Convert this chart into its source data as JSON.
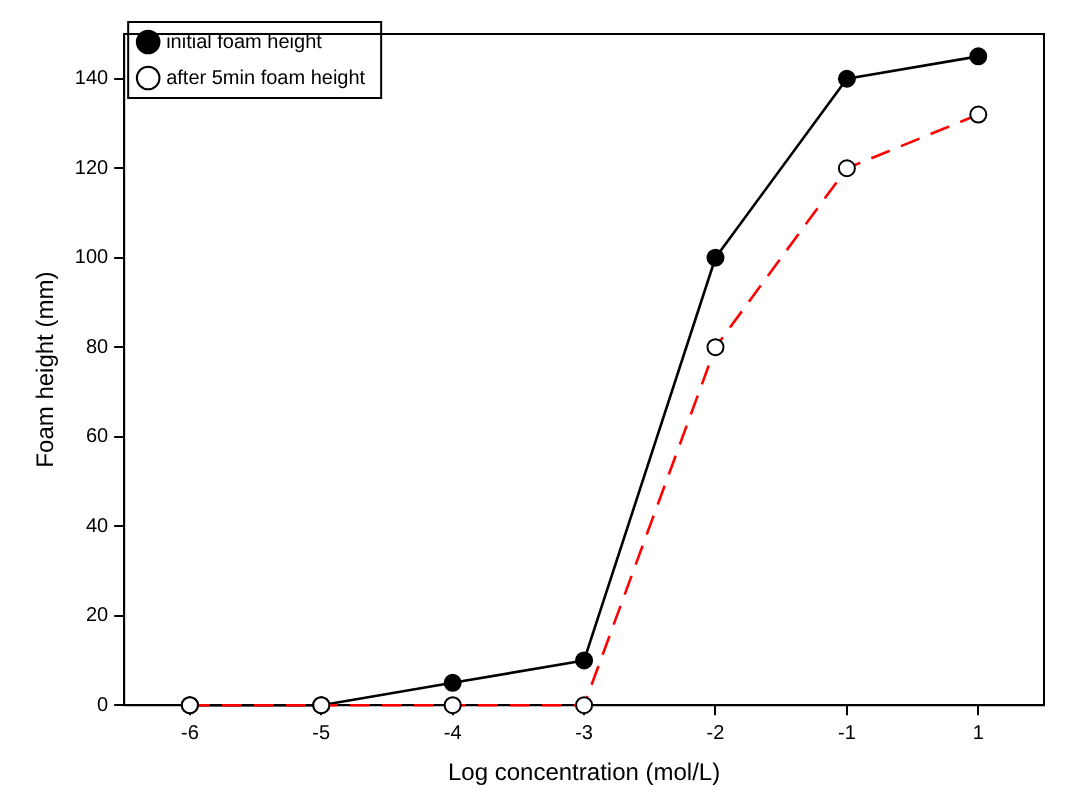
{
  "chart_data": {
    "type": "line",
    "xlabel": "Log concentration (mol/L)",
    "ylabel": "Foam height (mm)",
    "categories": [
      "-6",
      "-5",
      "-4",
      "-3",
      "-2",
      "-1",
      "1"
    ],
    "series": [
      {
        "name": "initial foam height",
        "color": "#000000",
        "values": [
          0,
          0,
          5,
          10,
          100,
          140,
          145
        ],
        "marker": "circle",
        "line_style": "solid"
      },
      {
        "name": "after 5min foam height",
        "color": "#ff0000",
        "values": [
          0,
          0,
          0,
          0,
          80,
          120,
          132
        ],
        "marker": "circle",
        "line_style": "dashed"
      }
    ],
    "ylim": [
      0,
      150
    ],
    "yticks": [
      0,
      20,
      40,
      60,
      80,
      100,
      120,
      140
    ],
    "grid": false,
    "legend": "top left"
  }
}
